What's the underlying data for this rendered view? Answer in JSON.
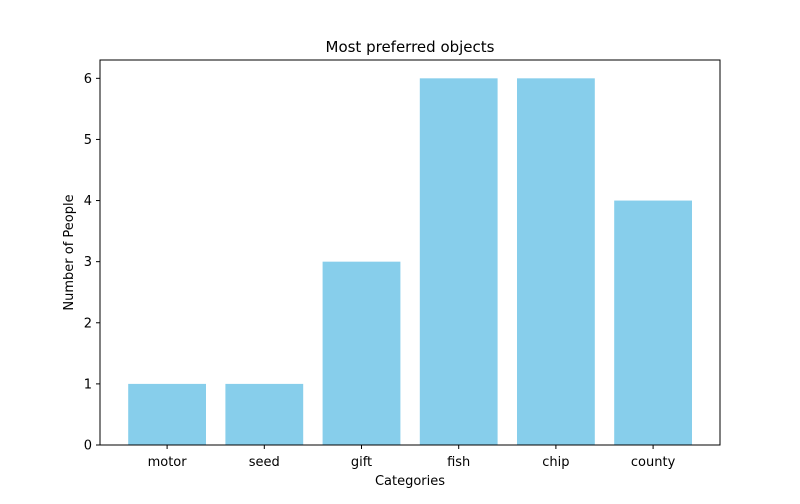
{
  "chart_data": {
    "type": "bar",
    "title": "Most preferred objects",
    "xlabel": "Categories",
    "ylabel": "Number of People",
    "categories": [
      "motor",
      "seed",
      "gift",
      "fish",
      "chip",
      "county"
    ],
    "values": [
      1,
      1,
      3,
      6,
      6,
      4
    ],
    "ylim": [
      0,
      6.3
    ],
    "yticks": [
      0,
      1,
      2,
      3,
      4,
      5,
      6
    ],
    "bar_color": "#87ceeb",
    "grid": false
  }
}
